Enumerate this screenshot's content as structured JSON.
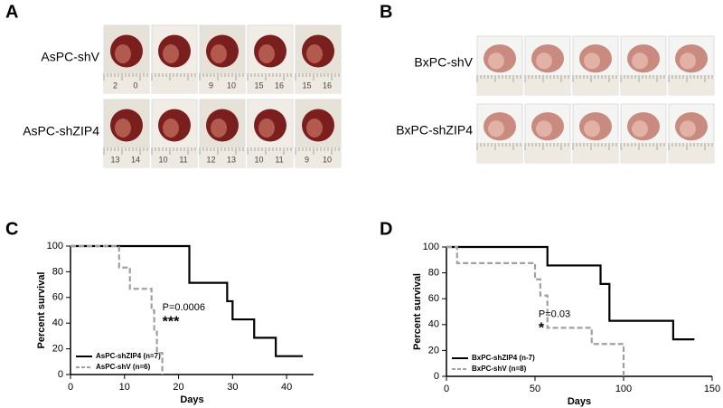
{
  "panels": {
    "A": {
      "letter": "A",
      "rows": [
        {
          "label": "AsPC-shV",
          "tiles": [
            [
              "2",
              "0"
            ],
            null,
            [
              "9",
              "10"
            ],
            [
              "15",
              "16"
            ],
            [
              "15",
              "16"
            ]
          ]
        },
        {
          "label": "AsPC-shZIP4",
          "tiles": [
            [
              "13",
              "14"
            ],
            [
              "10",
              "11"
            ],
            [
              "12",
              "13"
            ],
            [
              "10",
              "11"
            ],
            [
              "9",
              "10"
            ]
          ]
        }
      ]
    },
    "B": {
      "letter": "B",
      "rows": [
        {
          "label": "BxPC-shV",
          "tiles": [
            null,
            null,
            null,
            null,
            null
          ]
        },
        {
          "label": "BxPC-shZIP4",
          "tiles": [
            null,
            null,
            null,
            null,
            null
          ]
        }
      ]
    },
    "C": {
      "letter": "C"
    },
    "D": {
      "letter": "D"
    }
  },
  "chart_data": [
    {
      "type": "step",
      "xlabel": "Days",
      "ylabel": "Percent survival",
      "xlim": [
        0,
        45
      ],
      "xticks": [
        0,
        10,
        20,
        30,
        40
      ],
      "ylim": [
        0,
        100
      ],
      "yticks": [
        0,
        20,
        40,
        60,
        80,
        100
      ],
      "annotations": [
        "P=0.0006",
        "***"
      ],
      "legend": "lower left",
      "series": [
        {
          "name": "AsPC-shZIP4 (n=7)",
          "color": "#000000",
          "dashed": false,
          "x": [
            0,
            22,
            29,
            30,
            34,
            38,
            43
          ],
          "values": [
            100,
            71.4,
            57.1,
            42.9,
            28.6,
            14.3,
            14.3
          ]
        },
        {
          "name": "AsPC-shV (n=6)",
          "color": "#a0a0a0",
          "dashed": true,
          "x": [
            0,
            9,
            11,
            15,
            15.5,
            16,
            17
          ],
          "values": [
            100,
            83.3,
            66.7,
            50,
            33.3,
            16.7,
            0
          ]
        }
      ]
    },
    {
      "type": "step",
      "xlabel": "Days",
      "ylabel": "Percent survival",
      "xlim": [
        0,
        150
      ],
      "xticks": [
        0,
        50,
        100,
        150
      ],
      "ylim": [
        0,
        100
      ],
      "yticks": [
        0,
        20,
        40,
        60,
        80,
        100
      ],
      "annotations": [
        "P=0.03",
        "*"
      ],
      "legend": "lower left",
      "series": [
        {
          "name": "BxPC-shZIP4 (n-7)",
          "color": "#000000",
          "dashed": false,
          "x": [
            0,
            57,
            87,
            92,
            128,
            140
          ],
          "values": [
            100,
            85.7,
            71.4,
            42.9,
            28.6,
            28.6
          ]
        },
        {
          "name": "BxPC-shV (n=8)",
          "color": "#a0a0a0",
          "dashed": true,
          "x": [
            0,
            6,
            50,
            53,
            57,
            82,
            100
          ],
          "values": [
            100,
            87.5,
            75,
            62.5,
            37.5,
            25,
            0
          ]
        }
      ]
    }
  ]
}
